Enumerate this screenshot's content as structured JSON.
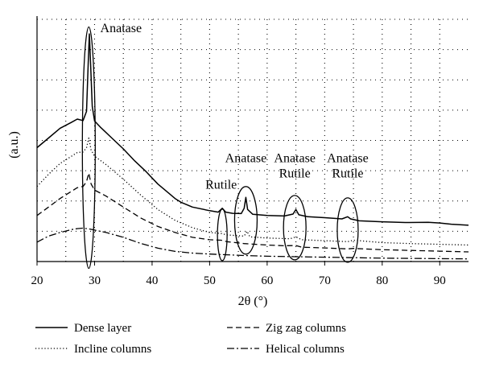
{
  "chart_data": {
    "type": "line",
    "title": "",
    "xlabel": "2θ (°)",
    "ylabel": "(a.u.)",
    "xlim": [
      20,
      95
    ],
    "ylim": [
      0,
      100
    ],
    "xticks": [
      "20",
      "30",
      "40",
      "50",
      "60",
      "70",
      "80",
      "90"
    ],
    "xtick_values": [
      20,
      30,
      40,
      50,
      60,
      70,
      80,
      90
    ],
    "grid": "dotted",
    "legend_position": "bottom",
    "series": [
      {
        "name": "Dense layer",
        "style": "solid",
        "x": [
          20,
          22,
          24,
          26,
          27,
          28,
          28.6,
          28.9,
          29.1,
          29.3,
          29.6,
          30,
          31,
          33,
          35,
          37,
          39,
          41,
          43,
          44,
          45,
          47,
          50,
          51.5,
          52.2,
          52.8,
          54,
          55.5,
          56,
          56.3,
          56.6,
          57.5,
          60,
          63,
          64.5,
          65,
          65.5,
          67,
          70,
          73,
          74,
          74.5,
          76,
          80,
          84,
          88,
          90,
          92,
          95
        ],
        "y": [
          47,
          51,
          55,
          57.5,
          58.8,
          58.2,
          62,
          82,
          94,
          82,
          64,
          58,
          55.5,
          51,
          46.5,
          41.5,
          37,
          32,
          28,
          26,
          24.5,
          22.5,
          21,
          20.4,
          22,
          20.4,
          19.9,
          19.8,
          22,
          26.5,
          21.5,
          19.5,
          19,
          18.8,
          19.6,
          21.5,
          19.3,
          18.5,
          18.1,
          17.6,
          18.5,
          17.6,
          16.8,
          16.4,
          16.1,
          16.2,
          15.9,
          15.4,
          15
        ]
      },
      {
        "name": "Zig zag columns",
        "style": "dashed",
        "x": [
          20,
          22,
          24,
          26,
          27,
          28,
          28.6,
          29,
          29.4,
          30,
          32,
          35,
          38,
          41,
          44,
          47,
          50,
          52,
          53,
          56,
          60,
          63,
          65,
          66,
          70,
          74,
          75,
          80,
          85,
          90,
          95
        ],
        "y": [
          19,
          22.5,
          26,
          29,
          30.5,
          31,
          33,
          36.5,
          32,
          29.5,
          27,
          22.5,
          18,
          14.5,
          12,
          10,
          9,
          8.8,
          8.2,
          7.4,
          6.8,
          6.5,
          6.6,
          5.9,
          5.6,
          5.2,
          5.4,
          4.9,
          4.6,
          4.3,
          4
        ]
      },
      {
        "name": "Incline columns",
        "style": "dotted",
        "x": [
          20,
          22,
          24,
          26,
          27,
          28,
          28.6,
          29,
          29.4,
          30,
          32,
          35,
          38,
          41,
          44,
          47,
          50,
          52,
          53,
          56,
          56.5,
          57,
          60,
          64,
          65,
          66,
          70,
          74,
          75,
          80,
          85,
          90,
          95
        ],
        "y": [
          31,
          36,
          40.5,
          43.5,
          45,
          45.2,
          47,
          51,
          46,
          43.5,
          40,
          34,
          27.5,
          21.5,
          17,
          14,
          12,
          11.6,
          11,
          10.5,
          12.5,
          10.2,
          9.7,
          9.4,
          10.2,
          9,
          8.6,
          8.2,
          8.8,
          7.8,
          7.4,
          7.1,
          6.8
        ]
      },
      {
        "name": "Helical columns",
        "style": "dashdot",
        "x": [
          20,
          22,
          24,
          26,
          27,
          28,
          29,
          30,
          32,
          35,
          38,
          41,
          44,
          47,
          50,
          53,
          56,
          60,
          65,
          70,
          75,
          80,
          85,
          90,
          95
        ],
        "y": [
          8,
          10.5,
          12,
          13.2,
          13.6,
          13.8,
          13.5,
          13,
          12,
          10,
          7.5,
          5.5,
          4.2,
          3.5,
          3.1,
          2.8,
          2.5,
          2.2,
          2,
          1.8,
          1.6,
          1.4,
          1.3,
          1.2,
          1.1
        ]
      }
    ],
    "annotations": [
      {
        "lines": [
          "Anatase"
        ],
        "x": 29,
        "y": 103
      },
      {
        "lines": [
          "Rutile"
        ],
        "x": 52,
        "y": 30
      },
      {
        "lines": [
          "Anatase"
        ],
        "x": 56.3,
        "y": 41
      },
      {
        "lines": [
          "Anatase",
          "Rutile"
        ],
        "x": 64.8,
        "y": 41
      },
      {
        "lines": [
          "Anatase",
          "Rutile"
        ],
        "x": 74,
        "y": 41
      }
    ]
  }
}
